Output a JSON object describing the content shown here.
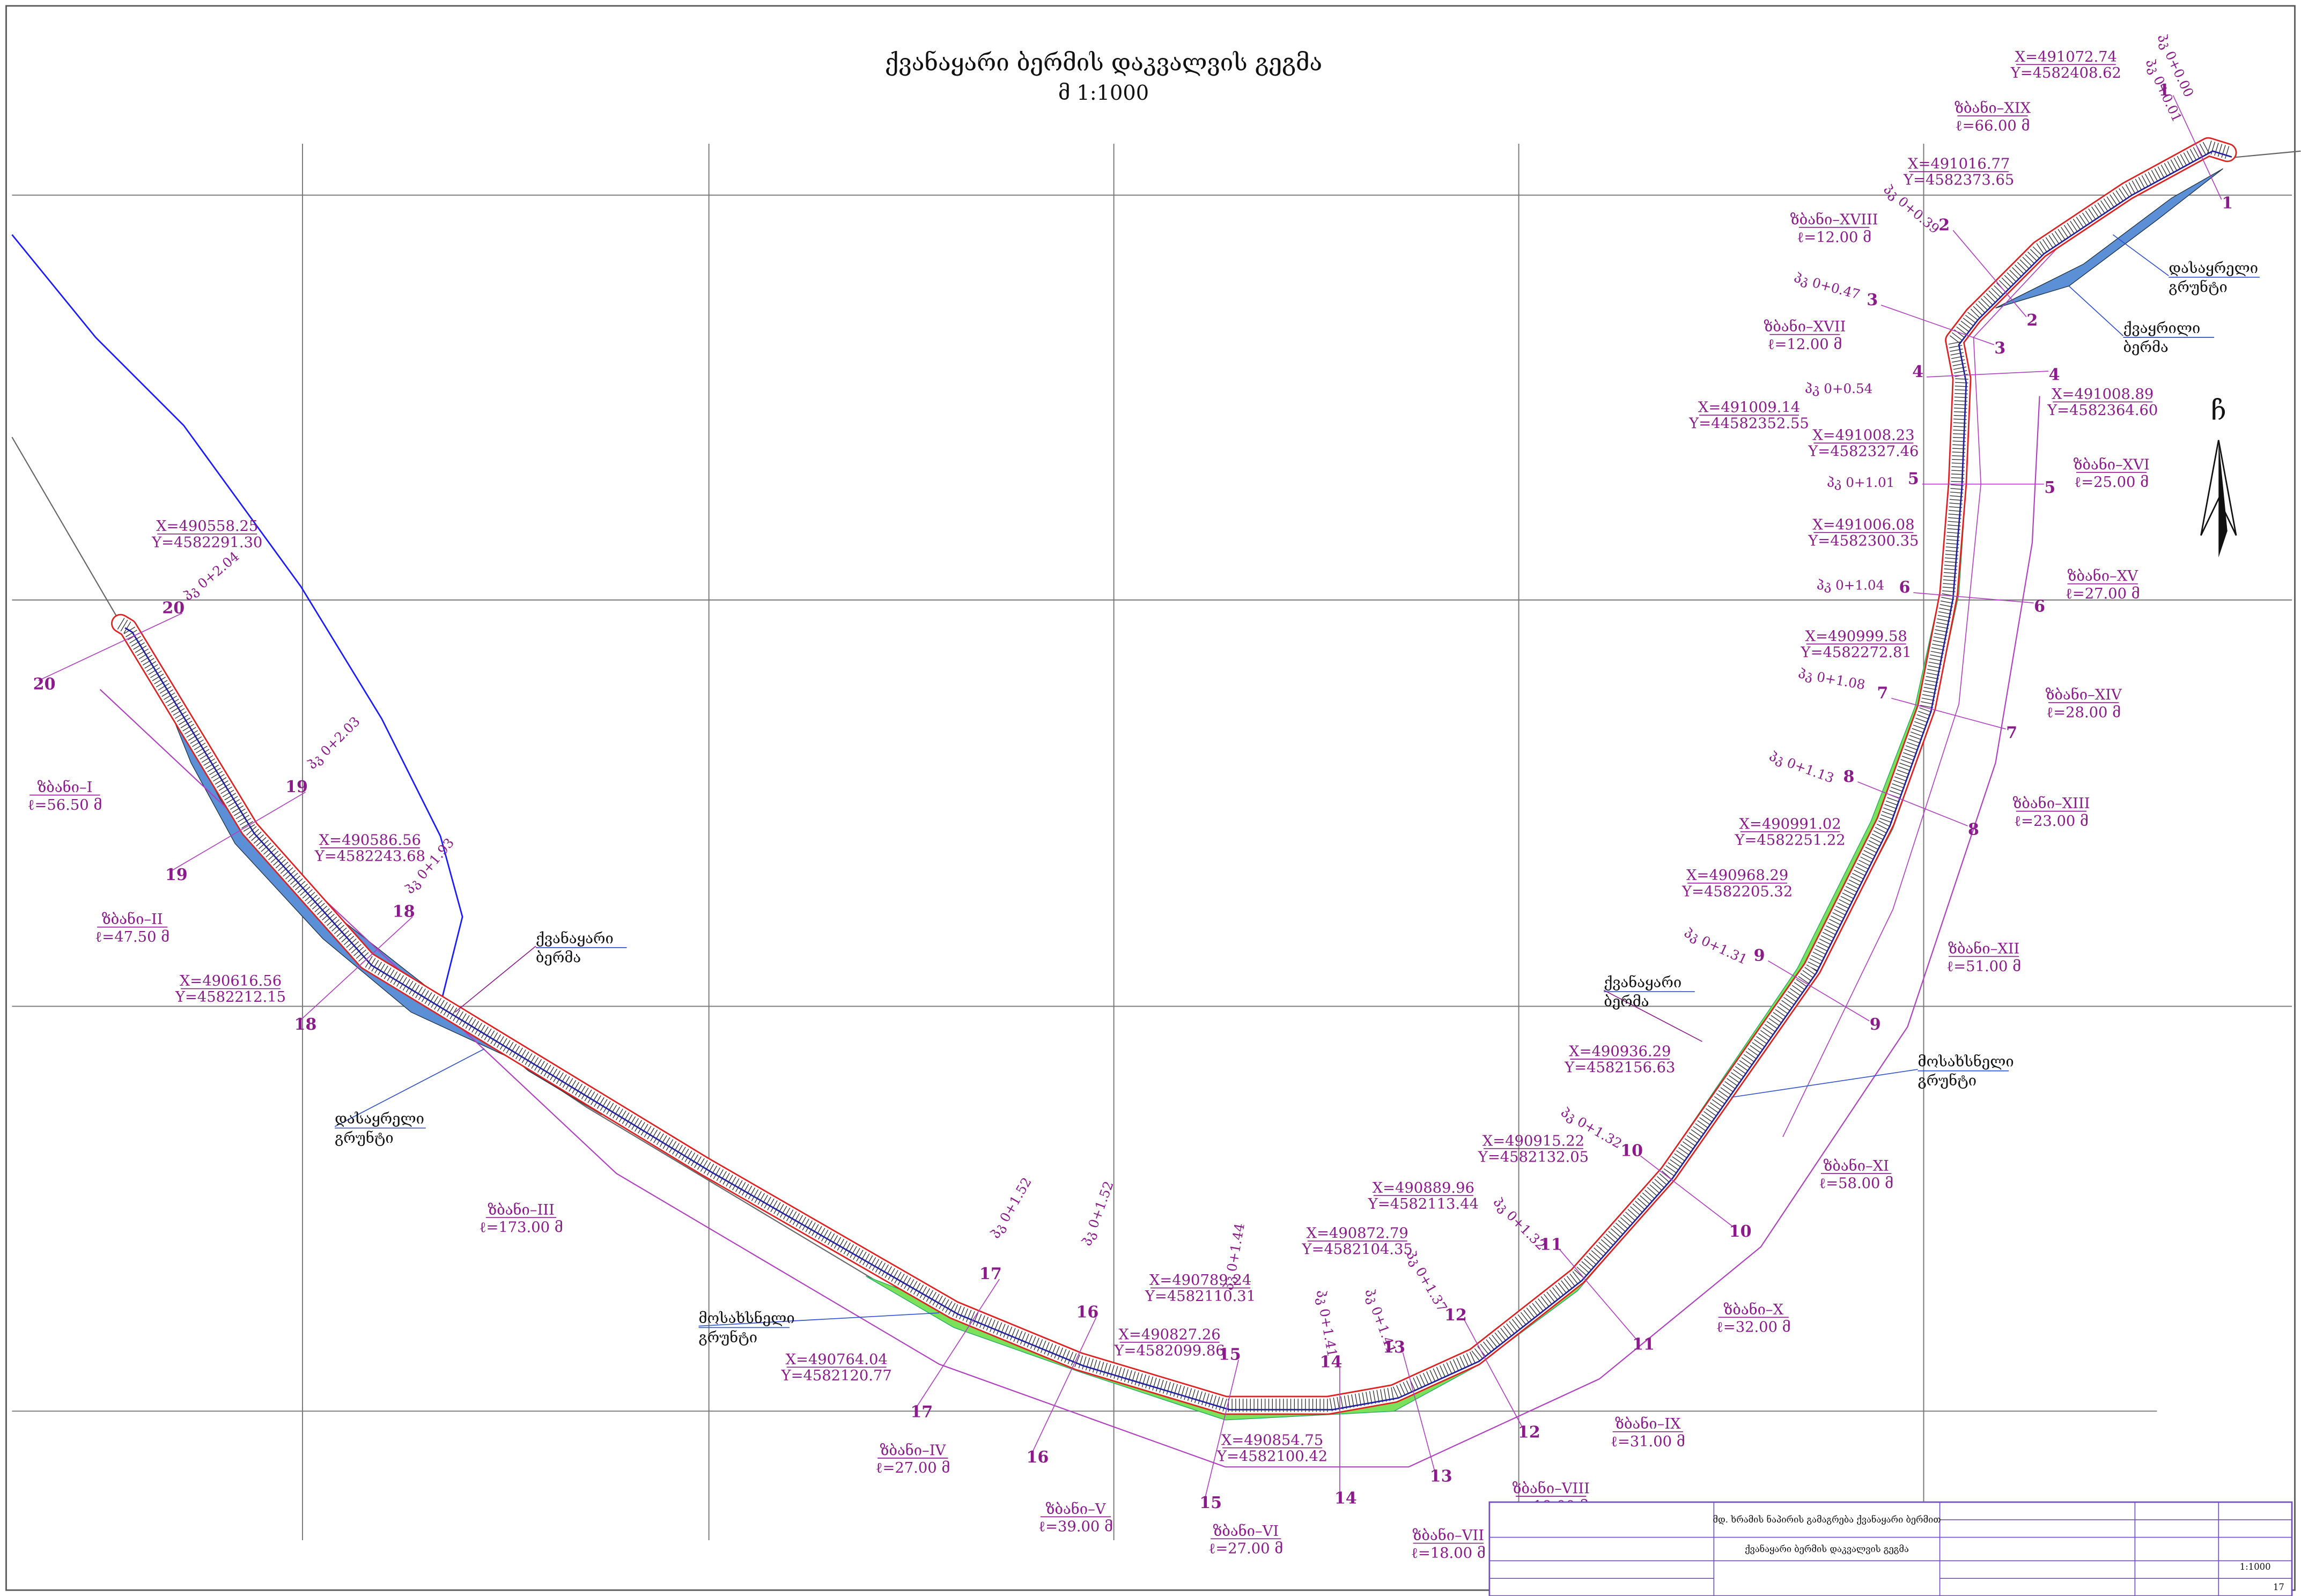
{
  "header": {
    "title": "ქვანაყარი ბერმის დაკვალვის გეგმა",
    "scale": "მ 1:1000"
  },
  "north": "ჩ",
  "coordinates": [
    {
      "x": "X=491072.74",
      "y": "Y=4582408.62"
    },
    {
      "x": "X=491016.77",
      "y": "Y=4582373.65"
    },
    {
      "x": "X=491009.14",
      "y": "Y=44582352.55"
    },
    {
      "x": "X=491008.89",
      "y": "Y=4582364.60"
    },
    {
      "x": "X=491008.23",
      "y": "Y=4582327.46"
    },
    {
      "x": "X=491006.08",
      "y": "Y=4582300.35"
    },
    {
      "x": "X=490999.58",
      "y": "Y=4582272.81"
    },
    {
      "x": "X=490991.02",
      "y": "Y=4582251.22"
    },
    {
      "x": "X=490968.29",
      "y": "Y=4582205.32"
    },
    {
      "x": "X=490936.29",
      "y": "Y=4582156.63"
    },
    {
      "x": "X=490915.22",
      "y": "Y=4582132.05"
    },
    {
      "x": "X=490889.96",
      "y": "Y=4582113.44"
    },
    {
      "x": "X=490872.79",
      "y": "Y=4582104.35"
    },
    {
      "x": "X=490827.26",
      "y": "Y=4582099.86"
    },
    {
      "x": "X=490789.24",
      "y": "Y=4582110.31"
    },
    {
      "x": "X=490854.75",
      "y": "Y=4582100.42"
    },
    {
      "x": "X=490764.04",
      "y": "Y=4582120.77"
    },
    {
      "x": "X=490616.56",
      "y": "Y=4582212.15"
    },
    {
      "x": "X=490586.56",
      "y": "Y=4582243.68"
    },
    {
      "x": "X=490558.25",
      "y": "Y=4582291.30"
    }
  ],
  "sections": [
    {
      "name": "ზბანი–I",
      "length": "ℓ=56.50 მ"
    },
    {
      "name": "ზბანი–II",
      "length": "ℓ=47.50 მ"
    },
    {
      "name": "ზბანი–III",
      "length": "ℓ=173.00 მ"
    },
    {
      "name": "ზბანი–IV",
      "length": "ℓ=27.00 მ"
    },
    {
      "name": "ზბანი–V",
      "length": "ℓ=39.00 მ"
    },
    {
      "name": "ზბანი–VI",
      "length": "ℓ=27.00 მ"
    },
    {
      "name": "ზბანი–VII",
      "length": "ℓ=18.00 მ"
    },
    {
      "name": "ზბანი–VIII",
      "length": "ℓ=19.00 მ"
    },
    {
      "name": "ზბანი–IX",
      "length": "ℓ=31.00 მ"
    },
    {
      "name": "ზბანი–X",
      "length": "ℓ=32.00 მ"
    },
    {
      "name": "ზბანი–XI",
      "length": "ℓ=58.00 მ"
    },
    {
      "name": "ზბანი–XII",
      "length": "ℓ=51.00 მ"
    },
    {
      "name": "ზბანი–XIII",
      "length": "ℓ=23.00 მ"
    },
    {
      "name": "ზბანი–XIV",
      "length": "ℓ=28.00 მ"
    },
    {
      "name": "ზბანი–XV",
      "length": "ℓ=27.00 მ"
    },
    {
      "name": "ზბანი–XVI",
      "length": "ℓ=25.00 მ"
    },
    {
      "name": "ზბანი–XVII",
      "length": "ℓ=12.00 მ"
    },
    {
      "name": "ზბანი–XVIII",
      "length": "ℓ=12.00 მ"
    },
    {
      "name": "ზბანი–XIX",
      "length": "ℓ=66.00 მ"
    }
  ],
  "pickets": [
    "პკ 0+0.00",
    "პკ 0+0.01",
    "პკ 0+0.39",
    "პკ 0+0.47",
    "პკ 0+0.54",
    "პკ 0+1.01",
    "პკ 0+1.04",
    "პკ 0+1.08",
    "პკ 0+1.13",
    "პკ 0+1.31",
    "პკ 0+1.32",
    "პკ 0+1.32",
    "პკ 0+1.37",
    "პკ 0+1.41",
    "პკ 0+1.41",
    "პკ 0+1.44",
    "პკ 0+1.52",
    "პკ 0+1.52",
    "პკ 0+1.93",
    "პკ 0+2.03",
    "პკ 0+2.04"
  ],
  "stations": [
    "1",
    "2",
    "3",
    "4",
    "5",
    "6",
    "7",
    "8",
    "9",
    "10",
    "11",
    "12",
    "13",
    "14",
    "15",
    "16",
    "17",
    "18",
    "19",
    "20"
  ],
  "regions": [
    {
      "line1": "დასაყრელი",
      "line2": "გრუნტი"
    },
    {
      "line1": "დასაყრელი",
      "line2": "გრუნტი"
    },
    {
      "line1": "ქვაყრილი",
      "line2": "ბერმა"
    },
    {
      "line1": "ქვანაყარი",
      "line2": "ბერმა"
    },
    {
      "line1": "ქვანაყარი",
      "line2": "ბერმა"
    },
    {
      "line1": "მოსახსნელი",
      "line2": "გრუნტი"
    },
    {
      "line1": "მოსახსნელი",
      "line2": "გრუნტი"
    }
  ],
  "title_block": {
    "project": "მდ. ხრამის ნაპირის გამაგრება ქვანაყარი ბერმით",
    "drawing": "ქვანაყარი ბერმის დაკვალვის გეგმა",
    "scale": "1:1000",
    "sheet": "17"
  }
}
